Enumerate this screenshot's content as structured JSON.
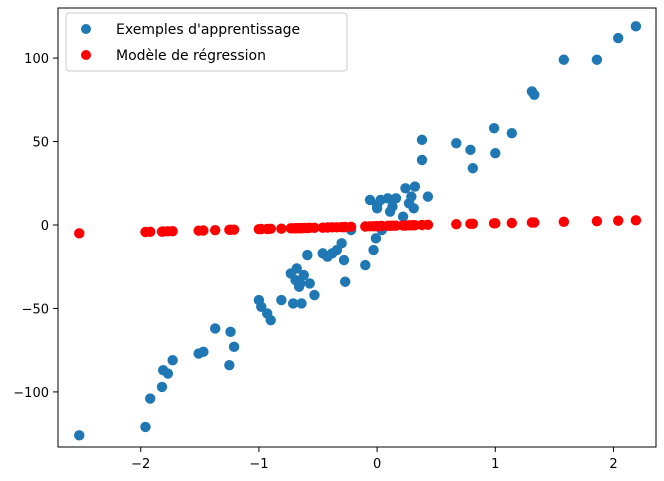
{
  "chart_data": {
    "type": "scatter",
    "title": "",
    "xlabel": "",
    "ylabel": "",
    "xlim": [
      -2.7,
      2.36
    ],
    "ylim": [
      -133,
      130
    ],
    "xticks": [
      -2,
      -1,
      0,
      1,
      2
    ],
    "xtick_labels": [
      "−2",
      "−1",
      "0",
      "1",
      "2"
    ],
    "yticks": [
      -100,
      -50,
      0,
      50,
      100
    ],
    "ytick_labels": [
      "−100",
      "−50",
      "0",
      "50",
      "100"
    ],
    "grid": false,
    "legend_position": "upper-left",
    "series": [
      {
        "name": "Exemples d'apprentissage",
        "color": "#1f77b4",
        "points": [
          [
            -2.52,
            -126
          ],
          [
            -1.96,
            -121
          ],
          [
            -1.92,
            -104
          ],
          [
            -1.82,
            -97
          ],
          [
            -1.81,
            -87
          ],
          [
            -1.77,
            -89
          ],
          [
            -1.73,
            -81
          ],
          [
            -1.51,
            -77
          ],
          [
            -1.47,
            -76
          ],
          [
            -1.37,
            -62
          ],
          [
            -1.25,
            -84
          ],
          [
            -1.24,
            -64
          ],
          [
            -1.21,
            -73
          ],
          [
            -1.0,
            -45
          ],
          [
            -0.98,
            -49
          ],
          [
            -0.93,
            -53
          ],
          [
            -0.9,
            -57
          ],
          [
            -0.81,
            -45
          ],
          [
            -0.73,
            -29
          ],
          [
            -0.71,
            -47
          ],
          [
            -0.69,
            -33
          ],
          [
            -0.68,
            -26
          ],
          [
            -0.66,
            -37
          ],
          [
            -0.65,
            -35
          ],
          [
            -0.64,
            -47
          ],
          [
            -0.62,
            -30
          ],
          [
            -0.59,
            -18
          ],
          [
            -0.57,
            -35
          ],
          [
            -0.53,
            -42
          ],
          [
            -0.46,
            -17
          ],
          [
            -0.42,
            -19
          ],
          [
            -0.38,
            -17
          ],
          [
            -0.34,
            -15
          ],
          [
            -0.3,
            -11
          ],
          [
            -0.28,
            -21
          ],
          [
            -0.27,
            -34
          ],
          [
            -0.22,
            -3
          ],
          [
            -0.1,
            -24
          ],
          [
            -0.06,
            15
          ],
          [
            -0.03,
            -15
          ],
          [
            -0.01,
            -8
          ],
          [
            0.0,
            12
          ],
          [
            0.0,
            10
          ],
          [
            0.03,
            15
          ],
          [
            0.04,
            -3
          ],
          [
            0.09,
            16
          ],
          [
            0.11,
            8
          ],
          [
            0.13,
            11
          ],
          [
            0.16,
            16
          ],
          [
            0.22,
            5
          ],
          [
            0.24,
            22
          ],
          [
            0.27,
            13
          ],
          [
            0.29,
            17
          ],
          [
            0.31,
            10
          ],
          [
            0.32,
            23
          ],
          [
            0.38,
            51
          ],
          [
            0.38,
            39
          ],
          [
            0.43,
            17
          ],
          [
            0.67,
            49
          ],
          [
            0.79,
            45
          ],
          [
            0.81,
            34
          ],
          [
            0.99,
            58
          ],
          [
            1.0,
            43
          ],
          [
            1.14,
            55
          ],
          [
            1.31,
            80
          ],
          [
            1.33,
            78
          ],
          [
            1.58,
            99
          ],
          [
            1.86,
            99
          ],
          [
            2.04,
            112
          ],
          [
            2.19,
            119
          ]
        ]
      },
      {
        "name": "Modèle de régression",
        "color": "#ff0000",
        "points": [
          [
            -2.52,
            -5
          ],
          [
            -1.96,
            -4.2
          ],
          [
            -1.92,
            -4.1
          ],
          [
            -1.82,
            -4.0
          ],
          [
            -1.81,
            -3.9
          ],
          [
            -1.77,
            -3.8
          ],
          [
            -1.73,
            -3.7
          ],
          [
            -1.51,
            -3.4
          ],
          [
            -1.47,
            -3.3
          ],
          [
            -1.37,
            -3.1
          ],
          [
            -1.25,
            -2.9
          ],
          [
            -1.24,
            -2.9
          ],
          [
            -1.21,
            -2.8
          ],
          [
            -1.0,
            -2.5
          ],
          [
            -0.98,
            -2.4
          ],
          [
            -0.93,
            -2.4
          ],
          [
            -0.9,
            -2.3
          ],
          [
            -0.81,
            -2.2
          ],
          [
            -0.73,
            -2.0
          ],
          [
            -0.71,
            -2.0
          ],
          [
            -0.69,
            -2.0
          ],
          [
            -0.68,
            -1.9
          ],
          [
            -0.66,
            -1.9
          ],
          [
            -0.65,
            -1.9
          ],
          [
            -0.64,
            -1.9
          ],
          [
            -0.62,
            -1.8
          ],
          [
            -0.59,
            -1.8
          ],
          [
            -0.57,
            -1.7
          ],
          [
            -0.53,
            -1.7
          ],
          [
            -0.46,
            -1.6
          ],
          [
            -0.42,
            -1.5
          ],
          [
            -0.38,
            -1.4
          ],
          [
            -0.34,
            -1.4
          ],
          [
            -0.3,
            -1.3
          ],
          [
            -0.28,
            -1.3
          ],
          [
            -0.27,
            -1.2
          ],
          [
            -0.22,
            -1.1
          ],
          [
            -0.1,
            -0.9
          ],
          [
            -0.06,
            -0.8
          ],
          [
            -0.03,
            -0.8
          ],
          [
            -0.01,
            -0.7
          ],
          [
            0.0,
            -0.7
          ],
          [
            0.03,
            -0.6
          ],
          [
            0.04,
            -0.6
          ],
          [
            0.09,
            -0.5
          ],
          [
            0.11,
            -0.5
          ],
          [
            0.13,
            -0.4
          ],
          [
            0.16,
            -0.4
          ],
          [
            0.22,
            -0.3
          ],
          [
            0.24,
            -0.3
          ],
          [
            0.27,
            -0.2
          ],
          [
            0.29,
            -0.2
          ],
          [
            0.31,
            -0.1
          ],
          [
            0.32,
            -0.1
          ],
          [
            0.38,
            0.0
          ],
          [
            0.43,
            0.1
          ],
          [
            0.67,
            0.5
          ],
          [
            0.79,
            0.7
          ],
          [
            0.81,
            0.7
          ],
          [
            0.99,
            1.0
          ],
          [
            1.0,
            1.0
          ],
          [
            1.14,
            1.2
          ],
          [
            1.31,
            1.5
          ],
          [
            1.33,
            1.5
          ],
          [
            1.58,
            1.9
          ],
          [
            1.86,
            2.3
          ],
          [
            2.04,
            2.6
          ],
          [
            2.19,
            2.8
          ]
        ]
      }
    ]
  }
}
